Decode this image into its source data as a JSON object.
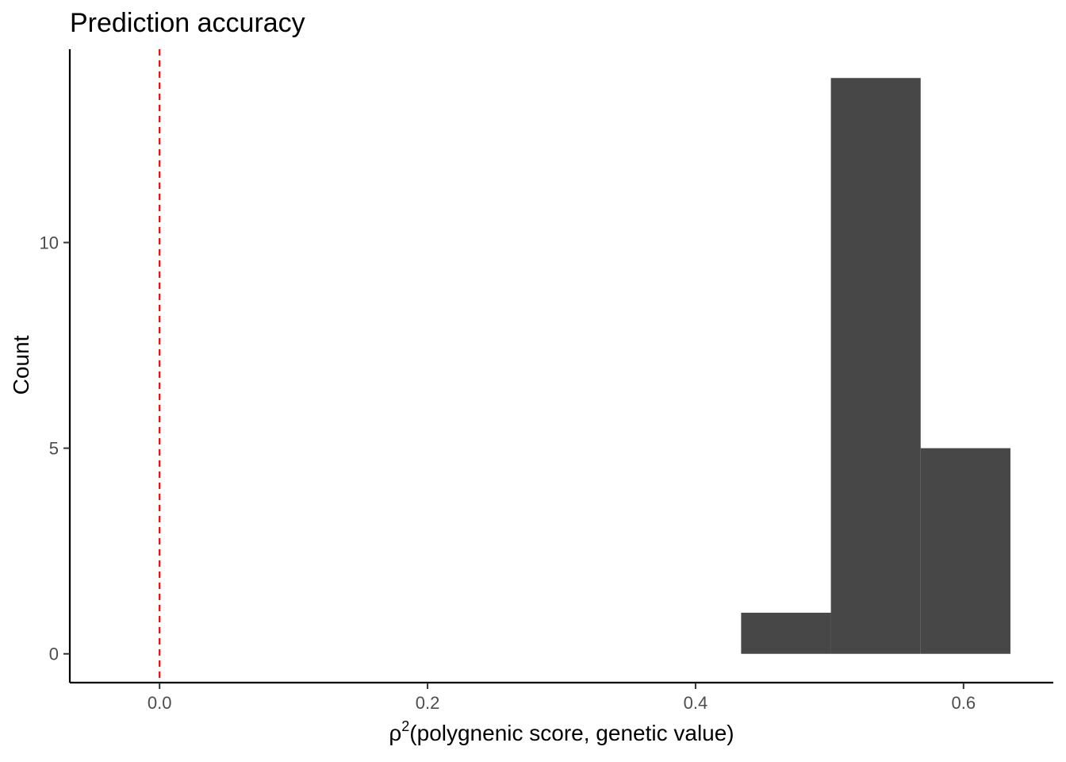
{
  "chart_data": {
    "type": "bar",
    "title": "Prediction accuracy",
    "xlabel": {
      "symbol": "ρ",
      "superscript": "2",
      "text": "(polygnenic score, genetic value)"
    },
    "ylabel": "Count",
    "xlim": [
      -0.067,
      0.667
    ],
    "ylim": [
      -0.7,
      14.7
    ],
    "x_ticks": [
      0.0,
      0.2,
      0.4,
      0.6
    ],
    "x_tick_labels": [
      "0.0",
      "0.2",
      "0.4",
      "0.6"
    ],
    "y_ticks": [
      0,
      5,
      10
    ],
    "y_tick_labels": [
      "0",
      "5",
      "10"
    ],
    "bins": [
      {
        "x_start": 0.434,
        "x_end": 0.501,
        "count": 1
      },
      {
        "x_start": 0.501,
        "x_end": 0.568,
        "count": 14
      },
      {
        "x_start": 0.568,
        "x_end": 0.635,
        "count": 5
      }
    ],
    "reference_line": {
      "x": 0.0,
      "style": "dashed"
    },
    "grid": false,
    "bar_color": "#474747",
    "reference_line_color": "#ff0000"
  }
}
